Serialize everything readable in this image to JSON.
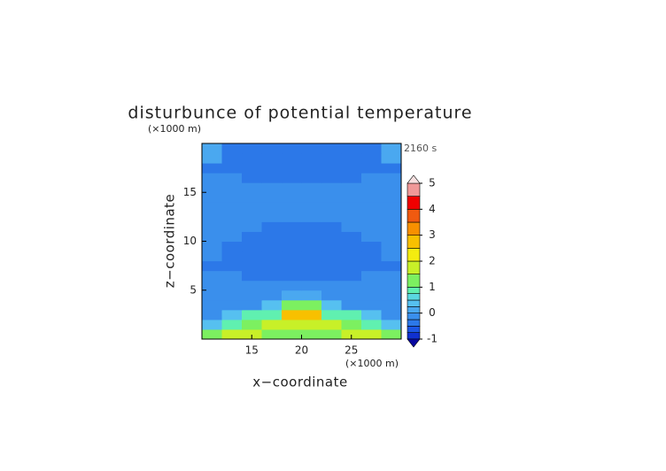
{
  "chart_data": {
    "type": "contour",
    "title": "disturbunce of potential temperature",
    "time_label": "2160 s",
    "x_label": "x−coordinate",
    "y_label": "z−coordinate",
    "x_unit": "(×1000 m)",
    "y_unit": "(×1000 m)",
    "x": [
      10,
      12,
      14,
      16,
      18,
      20,
      22,
      24,
      26,
      28,
      30
    ],
    "y": [
      0,
      1,
      2,
      3,
      4,
      5,
      6,
      7,
      8,
      9,
      10,
      11,
      12,
      13,
      14,
      15,
      16,
      17,
      18,
      19,
      20
    ],
    "z": [
      [
        1.2,
        1.6,
        1.6,
        1.2,
        1.2,
        1.2,
        1.2,
        1.6,
        1.6,
        1.2
      ],
      [
        0.3,
        0.8,
        1.2,
        1.6,
        1.8,
        1.8,
        1.6,
        1.2,
        0.8,
        0.3
      ],
      [
        -0.1,
        0.3,
        0.8,
        0.8,
        2.8,
        2.8,
        0.8,
        0.8,
        0.3,
        -0.1
      ],
      [
        -0.1,
        -0.1,
        -0.1,
        0.3,
        1.2,
        1.2,
        0.3,
        -0.1,
        -0.1,
        -0.1
      ],
      [
        -0.1,
        -0.1,
        -0.1,
        -0.1,
        0.1,
        0.1,
        -0.1,
        -0.1,
        -0.1,
        -0.1
      ],
      [
        -0.1,
        -0.1,
        -0.1,
        -0.1,
        -0.1,
        -0.1,
        -0.1,
        -0.1,
        -0.1,
        -0.1
      ],
      [
        -0.1,
        -0.1,
        -0.4,
        -0.4,
        -0.4,
        -0.4,
        -0.4,
        -0.4,
        -0.1,
        -0.1
      ],
      [
        -0.4,
        -0.4,
        -0.4,
        -0.4,
        -0.4,
        -0.4,
        -0.4,
        -0.4,
        -0.4,
        -0.4
      ],
      [
        -0.1,
        -0.4,
        -0.4,
        -0.4,
        -0.4,
        -0.4,
        -0.4,
        -0.4,
        -0.4,
        -0.1
      ],
      [
        -0.1,
        -0.4,
        -0.4,
        -0.4,
        -0.4,
        -0.4,
        -0.4,
        -0.4,
        -0.4,
        -0.1
      ],
      [
        -0.1,
        -0.1,
        -0.4,
        -0.4,
        -0.4,
        -0.4,
        -0.4,
        -0.4,
        -0.1,
        -0.1
      ],
      [
        -0.1,
        -0.1,
        -0.1,
        -0.4,
        -0.4,
        -0.4,
        -0.4,
        -0.1,
        -0.1,
        -0.1
      ],
      [
        -0.1,
        -0.1,
        -0.1,
        -0.1,
        -0.1,
        -0.1,
        -0.1,
        -0.1,
        -0.1,
        -0.1
      ],
      [
        -0.1,
        -0.1,
        -0.1,
        -0.1,
        -0.1,
        -0.1,
        -0.1,
        -0.1,
        -0.1,
        -0.1
      ],
      [
        -0.1,
        -0.1,
        -0.1,
        -0.1,
        -0.1,
        -0.1,
        -0.1,
        -0.1,
        -0.1,
        -0.1
      ],
      [
        -0.1,
        -0.1,
        -0.1,
        -0.1,
        -0.1,
        -0.1,
        -0.1,
        -0.1,
        -0.1,
        -0.1
      ],
      [
        -0.1,
        -0.1,
        -0.4,
        -0.4,
        -0.4,
        -0.4,
        -0.4,
        -0.4,
        -0.1,
        -0.1
      ],
      [
        -0.4,
        -0.4,
        -0.4,
        -0.4,
        -0.4,
        -0.4,
        -0.4,
        -0.4,
        -0.4,
        -0.4
      ],
      [
        0.1,
        -0.4,
        -0.4,
        -0.4,
        -0.4,
        -0.4,
        -0.4,
        -0.4,
        -0.4,
        0.1
      ],
      [
        0.1,
        -0.4,
        -0.4,
        -0.4,
        -0.4,
        -0.4,
        -0.4,
        -0.4,
        -0.4,
        0.1
      ]
    ],
    "xlim": [
      10,
      30
    ],
    "ylim": [
      0,
      20
    ],
    "xticks": [
      15,
      20,
      25
    ],
    "yticks": [
      5,
      10,
      15
    ],
    "levels": [
      -1,
      -0.75,
      -0.5,
      -0.25,
      0,
      0.25,
      0.5,
      0.75,
      1,
      1.5,
      2,
      2.5,
      3,
      3.5,
      4,
      4.5,
      5
    ],
    "colors": [
      "#1030d0",
      "#1c56e4",
      "#2c78e8",
      "#3a8fec",
      "#4aa8f0",
      "#56c0f0",
      "#5ad8e0",
      "#60f0b0",
      "#7cf060",
      "#c8f028",
      "#f4ec10",
      "#f8c000",
      "#f89000",
      "#f05a10",
      "#f00000",
      "#f09898"
    ],
    "under_color": "#0808a0",
    "over_color": "#f8e0e0",
    "cbar_ticks": [
      -1,
      0,
      1,
      2,
      3,
      4,
      5
    ]
  }
}
